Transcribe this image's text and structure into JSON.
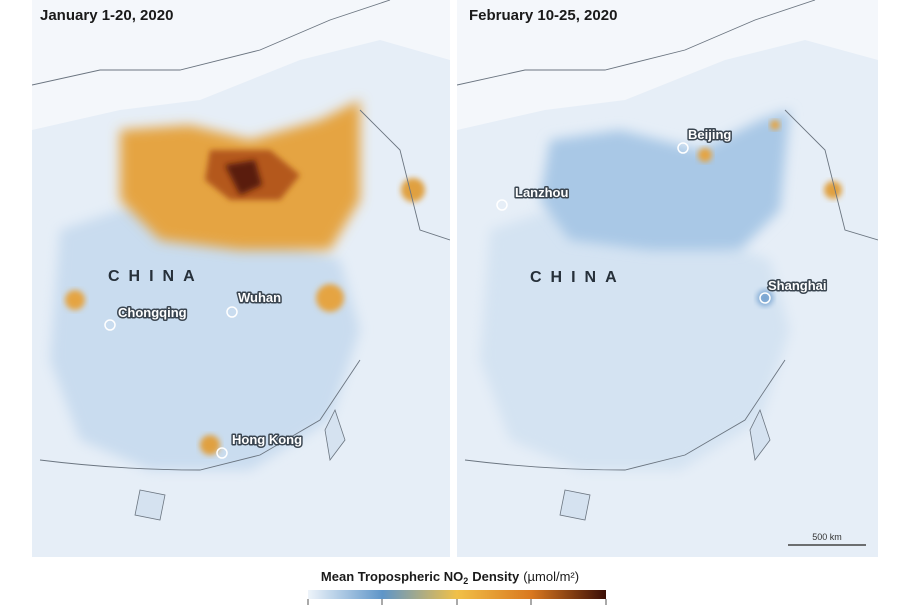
{
  "panels": [
    {
      "title": "January 1-20, 2020",
      "country_label": "CHINA",
      "cities": [
        {
          "label": "Chongqing"
        },
        {
          "label": "Wuhan"
        },
        {
          "label": "Hong Kong"
        }
      ]
    },
    {
      "title": "February 10-25, 2020",
      "country_label": "CHINA",
      "cities": [
        {
          "label": "Lanzhou"
        },
        {
          "label": "Beijing"
        },
        {
          "label": "Shanghai"
        }
      ]
    }
  ],
  "scale_bar": "500 km",
  "legend": {
    "title_prefix": "Mean Tropospheric NO",
    "title_subscript": "2",
    "title_suffix": "Density",
    "unit": "(µmol/m²)"
  }
}
